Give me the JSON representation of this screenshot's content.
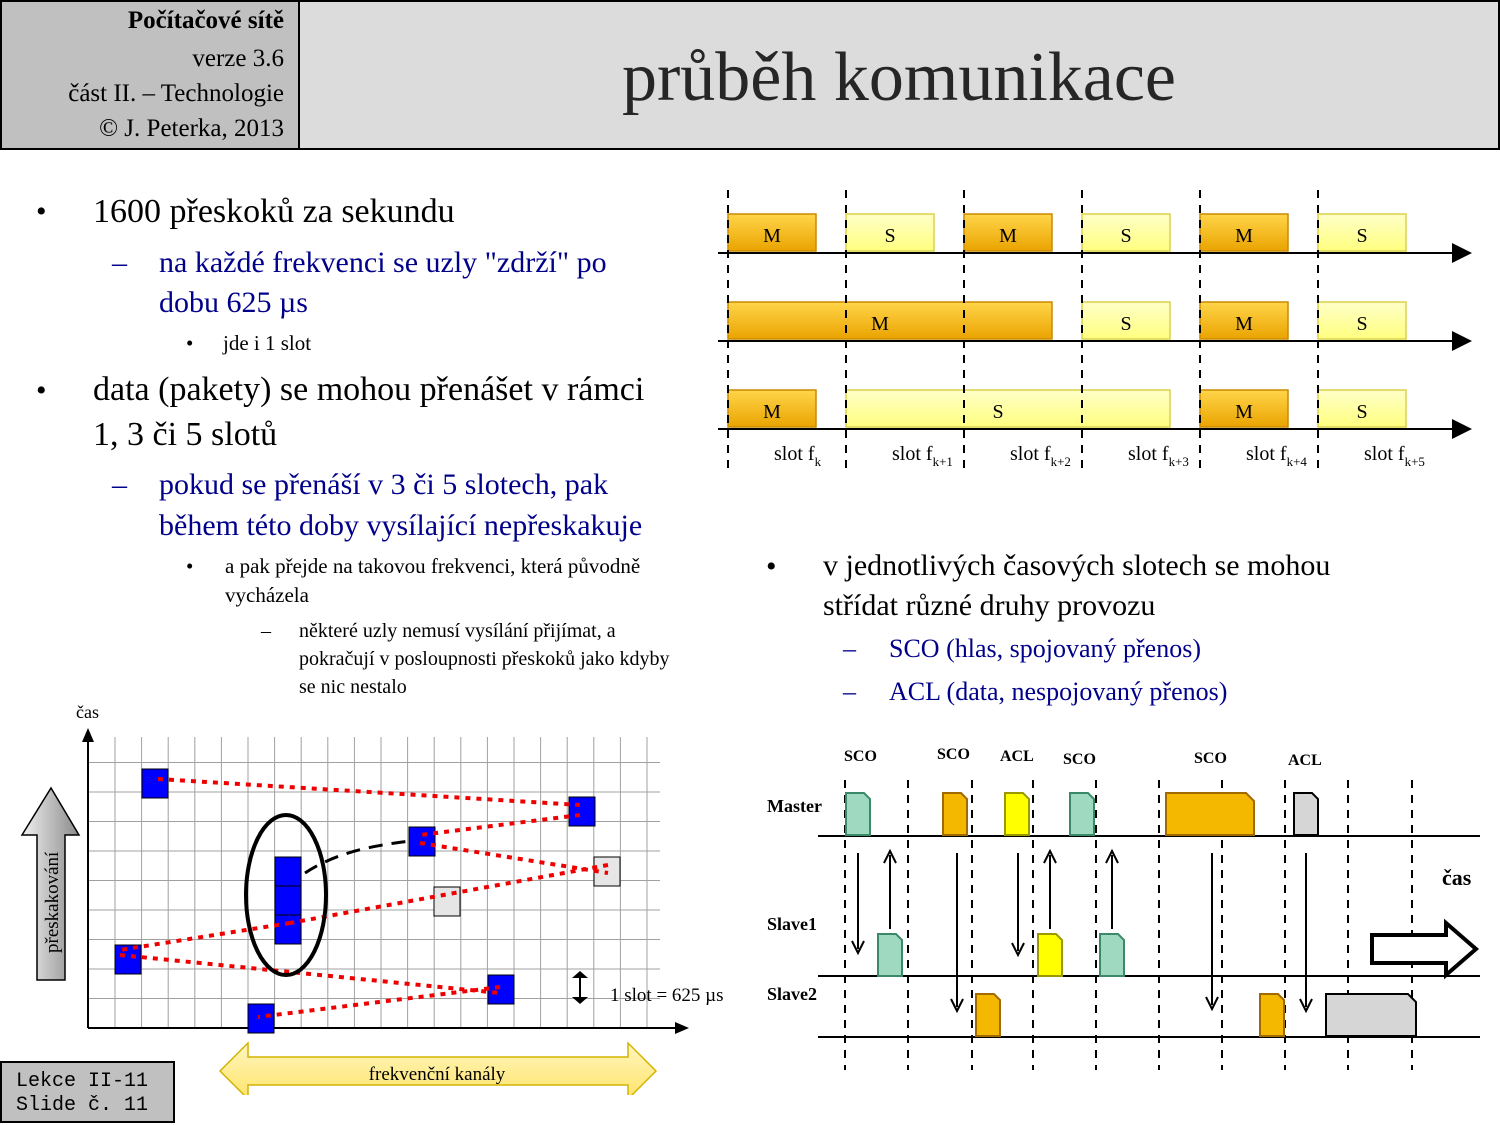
{
  "header": {
    "course": "Počítačové sítě",
    "version": "verze 3.6",
    "part": "část  II. –  Technologie",
    "copyright": "© J. Peterka,  2013",
    "title": "průběh komunikace"
  },
  "bullets": {
    "b1": "1600 přeskoků za sekundu",
    "b1_sub1_line1": "na každé  frekvenci  se uzly \"zdrží\"  po",
    "b1_sub1_line2": "dobu 625 µs",
    "b1_sub1_item": "jde i 1 slot",
    "b2_line1": "data (pakety) se mohou přenášet v rámci",
    "b2_line2": "1, 3 či 5 slotů",
    "b2_sub1_line1": "pokud se přenáší  v 3 či 5 slotech,  pak",
    "b2_sub1_line2": "během  této  doby  vysílající  nepřeskakuje",
    "b2_item_line1": "a pak přejde na takovou frekvenci,  která původně",
    "b2_item_line2": "vycházela",
    "b2_subitem_line1": "některé uzly nemusí vysílání přijímat, a",
    "b2_subitem_line2": "pokračují v posloupnosti přeskoků jako kdyby",
    "b2_subitem_line3": "se nic nestalo",
    "b3_line1": "v  jednotlivých  časových  slotech  se mohou",
    "b3_line2": "střídat  různé  druhy  provozu",
    "b3_sub1": "SCO (hlas,  spojovaný  přenos)",
    "b3_sub2": "ACL  (data,  nespojovaný  přenos)"
  },
  "slot_diagram": {
    "rows": [
      [
        {
          "label": "M",
          "slots": 1,
          "type": "M"
        },
        {
          "label": "S",
          "slots": 1,
          "type": "S"
        },
        {
          "label": "M",
          "slots": 1,
          "type": "M"
        },
        {
          "label": "S",
          "slots": 1,
          "type": "S"
        },
        {
          "label": "M",
          "slots": 1,
          "type": "M"
        },
        {
          "label": "S",
          "slots": 1,
          "type": "S"
        }
      ],
      [
        {
          "label": "M",
          "slots": 3,
          "type": "M"
        },
        {
          "label": "S",
          "slots": 1,
          "type": "S"
        },
        {
          "label": "M",
          "slots": 1,
          "type": "M"
        },
        {
          "label": "S",
          "slots": 1,
          "type": "S"
        }
      ],
      [
        {
          "label": "M",
          "slots": 1,
          "type": "M"
        },
        {
          "label": "S",
          "slots": 3,
          "type": "S"
        },
        {
          "label": "M",
          "slots": 1,
          "type": "M"
        },
        {
          "label": "S",
          "slots": 1,
          "type": "S"
        }
      ]
    ],
    "slot_prefix": "slot f",
    "slot_subscripts": [
      "k",
      "k+1",
      "k+2",
      "k+3",
      "k+4",
      "k+5"
    ],
    "colors": {
      "M": "#f5b800",
      "S": "#ffff99"
    }
  },
  "hop_diagram": {
    "y_label": "čas",
    "up_arrow_label": "přeskakování",
    "x_arrow_label": "frekvenční  kanály",
    "slot_note": "1 slot = 625 µs"
  },
  "traffic_diagram": {
    "top_labels": [
      "SCO",
      "SCO",
      "ACL",
      "SCO",
      "SCO",
      "ACL"
    ],
    "master": "Master",
    "slave1": "Slave1",
    "slave2": "Slave2",
    "time_label": "čas",
    "colors": {
      "sco": "#9fd9c0",
      "acl_yellow": "#ffff00",
      "orange": "#f5b800",
      "gray": "#d0d0d0"
    }
  },
  "footer": {
    "line1": "Lekce II-11",
    "line2": "Slide č. 11"
  }
}
